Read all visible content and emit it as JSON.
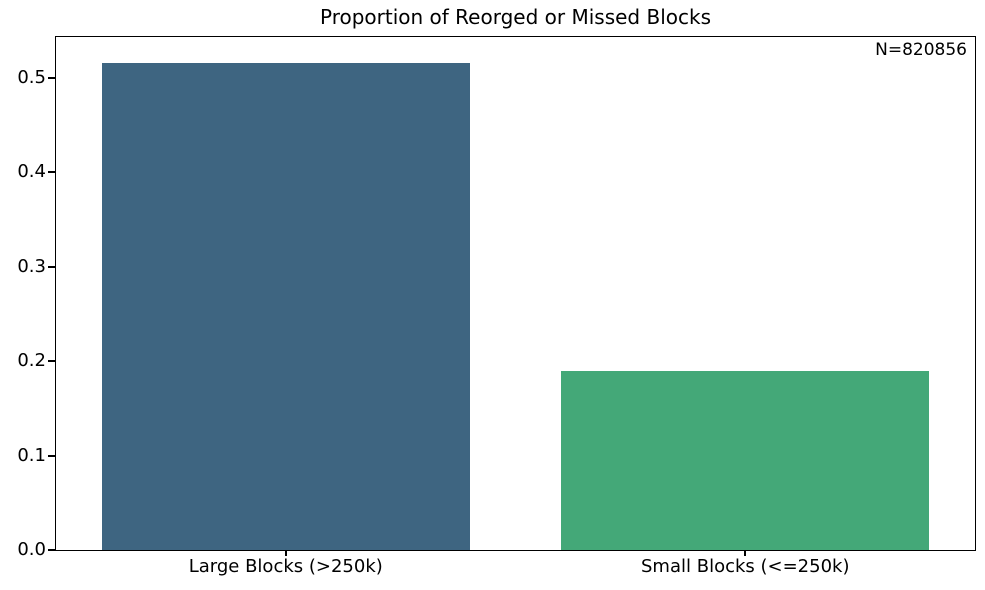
{
  "chart_data": {
    "type": "bar",
    "title": "Proportion of Reorged or Missed Blocks",
    "categories": [
      "Large Blocks (>250k)",
      "Small Blocks (<=250k)"
    ],
    "values": [
      0.515,
      0.19
    ],
    "bar_colors": [
      "#3e6581",
      "#44a878"
    ],
    "annotation": "N=820856",
    "xlabel": "",
    "ylabel": "",
    "ylim": [
      0,
      0.543
    ],
    "yticks": [
      0.0,
      0.1,
      0.2,
      0.3,
      0.4,
      0.5
    ],
    "ytick_labels": [
      "0.0",
      "0.1",
      "0.2",
      "0.3",
      "0.4",
      "0.5"
    ],
    "grid": false,
    "legend": null
  },
  "colors": {
    "background": "#ffffff",
    "spine": "#000000",
    "text": "#000000"
  }
}
